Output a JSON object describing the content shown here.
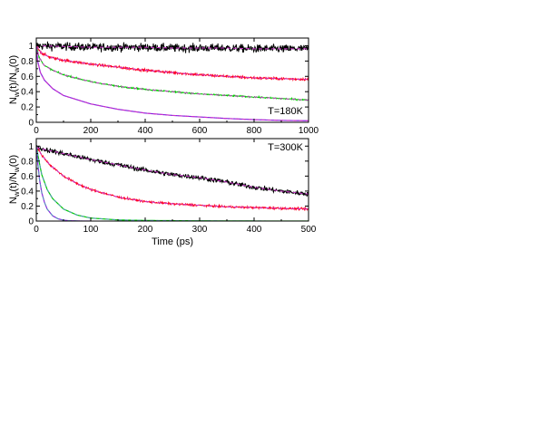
{
  "chart_data": [
    {
      "type": "line",
      "panel": "top",
      "annotation": "T=180K",
      "xlabel": "",
      "ylabel_parts": [
        "N",
        "w",
        "(t)/N",
        "w",
        "(0)"
      ],
      "xlim": [
        0,
        1000
      ],
      "ylim": [
        0,
        1.1
      ],
      "x_ticks": [
        0,
        200,
        400,
        600,
        800,
        1000
      ],
      "y_ticks": [
        0,
        0.2,
        0.4,
        0.6,
        0.8,
        1
      ],
      "x_tick_labels": [
        "0",
        "200",
        "400",
        "600",
        "800",
        "1000"
      ],
      "y_tick_labels": [
        "0",
        "0.2",
        "0.4",
        "0.6",
        "0.8",
        "1"
      ],
      "series": [
        {
          "color": "#000000",
          "noise": 0.05,
          "fit_color": "#cc33cc",
          "x": [
            0,
            100,
            200,
            300,
            400,
            500,
            600,
            700,
            800,
            900,
            1000
          ],
          "y": [
            1.0,
            0.99,
            0.98,
            0.98,
            0.98,
            0.97,
            0.97,
            0.97,
            0.96,
            0.96,
            0.96
          ]
        },
        {
          "color": "#ff0022",
          "noise": 0.015,
          "fit_color": "#cc33cc",
          "x": [
            0,
            20,
            50,
            100,
            200,
            300,
            400,
            500,
            600,
            700,
            800,
            900,
            1000
          ],
          "y": [
            1.0,
            0.9,
            0.85,
            0.81,
            0.76,
            0.72,
            0.68,
            0.65,
            0.62,
            0.6,
            0.58,
            0.57,
            0.56
          ]
        },
        {
          "color": "#00cc00",
          "noise": 0.008,
          "fit_color": "#cc33cc",
          "x": [
            0,
            10,
            30,
            60,
            100,
            200,
            300,
            400,
            500,
            600,
            700,
            800,
            900,
            1000
          ],
          "y": [
            1.0,
            0.85,
            0.74,
            0.68,
            0.62,
            0.53,
            0.47,
            0.43,
            0.4,
            0.37,
            0.35,
            0.33,
            0.31,
            0.29
          ]
        },
        {
          "color": "#8822dd",
          "noise": 0.0,
          "fit_color": "#cc33cc",
          "x": [
            0,
            5,
            15,
            30,
            60,
            100,
            200,
            300,
            400,
            500,
            600,
            700,
            800,
            900,
            1000
          ],
          "y": [
            1.0,
            0.8,
            0.65,
            0.55,
            0.44,
            0.35,
            0.24,
            0.17,
            0.12,
            0.09,
            0.07,
            0.05,
            0.035,
            0.025,
            0.02
          ]
        }
      ]
    },
    {
      "type": "line",
      "panel": "bottom",
      "annotation": "T=300K",
      "xlabel": "Time (ps)",
      "ylabel_parts": [
        "N",
        "w",
        "(t)/N",
        "w",
        "(0)"
      ],
      "xlim": [
        0,
        500
      ],
      "ylim": [
        0,
        1.1
      ],
      "x_ticks": [
        0,
        100,
        200,
        300,
        400,
        500
      ],
      "y_ticks": [
        0,
        0.2,
        0.4,
        0.6,
        0.8,
        1
      ],
      "x_tick_labels": [
        "0",
        "100",
        "200",
        "300",
        "400",
        "500"
      ],
      "y_tick_labels": [
        "0",
        "0.2",
        "0.4",
        "0.6",
        "0.8",
        "1"
      ],
      "series": [
        {
          "color": "#000000",
          "noise": 0.03,
          "fit_color": "#cc33cc",
          "x": [
            0,
            25,
            50,
            100,
            150,
            200,
            250,
            300,
            350,
            400,
            450,
            500
          ],
          "y": [
            0.98,
            0.94,
            0.9,
            0.82,
            0.75,
            0.68,
            0.62,
            0.58,
            0.52,
            0.45,
            0.4,
            0.36
          ]
        },
        {
          "color": "#ff0022",
          "noise": 0.012,
          "fit_color": "#cc33cc",
          "x": [
            0,
            10,
            25,
            50,
            75,
            100,
            150,
            200,
            250,
            300,
            350,
            400,
            450,
            500
          ],
          "y": [
            1.0,
            0.88,
            0.75,
            0.6,
            0.5,
            0.42,
            0.32,
            0.26,
            0.23,
            0.21,
            0.19,
            0.18,
            0.17,
            0.16
          ]
        },
        {
          "color": "#00cc00",
          "noise": 0.0,
          "fit_color": "#5599bb",
          "x": [
            0,
            5,
            10,
            20,
            30,
            50,
            75,
            100,
            150,
            200,
            300,
            400,
            500
          ],
          "y": [
            1.0,
            0.8,
            0.62,
            0.42,
            0.3,
            0.16,
            0.08,
            0.04,
            0.015,
            0.008,
            0.003,
            0.001,
            0.0
          ]
        },
        {
          "color": "#8822dd",
          "noise": 0.0,
          "fit_color": "#5599bb",
          "x": [
            0,
            3,
            6,
            10,
            15,
            20,
            30,
            40,
            50,
            60,
            80,
            100
          ],
          "y": [
            1.0,
            0.75,
            0.55,
            0.38,
            0.25,
            0.16,
            0.07,
            0.03,
            0.012,
            0.005,
            0.001,
            0.0
          ]
        }
      ]
    }
  ]
}
